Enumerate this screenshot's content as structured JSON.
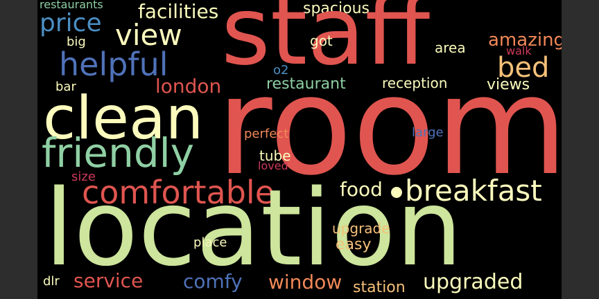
{
  "wordcloud": {
    "background": "#000000",
    "words": [
      {
        "id": "room",
        "text": "room",
        "color": "#e05550"
      },
      {
        "id": "location",
        "text": "location",
        "color": "#cde59c"
      },
      {
        "id": "staff",
        "text": "staff",
        "color": "#e05550"
      },
      {
        "id": "clean",
        "text": "clean",
        "color": "#fbfbbd"
      },
      {
        "id": "friendly",
        "text": "friendly",
        "color": "#8fd0a4"
      },
      {
        "id": "comfortable",
        "text": "comfortable",
        "color": "#e05550"
      },
      {
        "id": "breakfast",
        "text": "breakfast",
        "color": "#fbfbbd"
      },
      {
        "id": "helpful",
        "text": "helpful",
        "color": "#4f72b8"
      },
      {
        "id": "view",
        "text": "view",
        "color": "#fbfbbd"
      },
      {
        "id": "price",
        "text": "price",
        "color": "#4b8fc4"
      },
      {
        "id": "facilities",
        "text": "facilities",
        "color": "#fbfbbd"
      },
      {
        "id": "spacious",
        "text": "spacious",
        "color": "#fbfbbd"
      },
      {
        "id": "restaurants",
        "text": "restaurants",
        "color": "#8fd0a4"
      },
      {
        "id": "amazing",
        "text": "amazing",
        "color": "#f08858"
      },
      {
        "id": "walk",
        "text": "walk",
        "color": "#cc3a5a"
      },
      {
        "id": "bed",
        "text": "bed",
        "color": "#f5c07a"
      },
      {
        "id": "got",
        "text": "got",
        "color": "#fbfbbd"
      },
      {
        "id": "area",
        "text": "area",
        "color": "#fbfbbd"
      },
      {
        "id": "big",
        "text": "big",
        "color": "#fbfbbd"
      },
      {
        "id": "o2",
        "text": "o2",
        "color": "#4b8fc4"
      },
      {
        "id": "london",
        "text": "london",
        "color": "#e05550"
      },
      {
        "id": "restaurant",
        "text": "restaurant",
        "color": "#8fd0a4"
      },
      {
        "id": "reception",
        "text": "reception",
        "color": "#fbfbbd"
      },
      {
        "id": "views",
        "text": "views",
        "color": "#fbfbbd"
      },
      {
        "id": "bar",
        "text": "bar",
        "color": "#fbfbbd"
      },
      {
        "id": "perfect",
        "text": "perfect",
        "color": "#f08858"
      },
      {
        "id": "large",
        "text": "large",
        "color": "#4f72b8"
      },
      {
        "id": "tube",
        "text": "tube",
        "color": "#fbfbbd"
      },
      {
        "id": "loved",
        "text": "loved",
        "color": "#cc3a5a"
      },
      {
        "id": "size",
        "text": "size",
        "color": "#cc3a5a"
      },
      {
        "id": "food",
        "text": "food",
        "color": "#fbfbbd"
      },
      {
        "id": "upgrade",
        "text": "upgrade",
        "color": "#f5c07a"
      },
      {
        "id": "place",
        "text": "place",
        "color": "#fbfbbd"
      },
      {
        "id": "easy",
        "text": "easy",
        "color": "#f5c07a"
      },
      {
        "id": "service",
        "text": "service",
        "color": "#e05550"
      },
      {
        "id": "comfy",
        "text": "comfy",
        "color": "#4f72b8"
      },
      {
        "id": "window",
        "text": "window",
        "color": "#f08858"
      },
      {
        "id": "upgraded",
        "text": "upgraded",
        "color": "#fbfbbd"
      },
      {
        "id": "station",
        "text": "station",
        "color": "#f5c07a"
      },
      {
        "id": "dlr",
        "text": "dlr",
        "color": "#fbfbbd"
      }
    ]
  }
}
